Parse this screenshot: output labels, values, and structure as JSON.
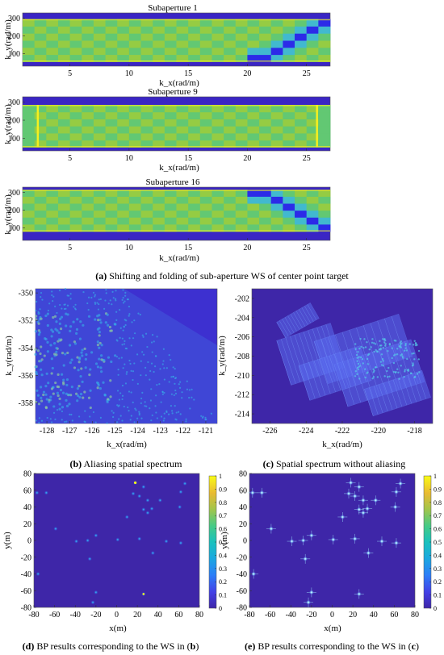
{
  "colors": {
    "dark": "#3a25c4",
    "deep": "#2c2be8",
    "mid": "#41b9cf",
    "green": "#62c873",
    "lime": "#95cc43",
    "yellow": "#f4f020"
  },
  "chart_data": [
    {
      "id": "sub1",
      "type": "heatmap",
      "title": "Subaperture 1",
      "xlabel": "k_x(rad/m)",
      "ylabel": "k_y(rad/m)",
      "xlim": [
        1,
        27
      ],
      "ylim": [
        30,
        330
      ],
      "xticks": [
        5,
        10,
        15,
        20,
        25
      ],
      "yticks": [
        100,
        200,
        300
      ],
      "band": [
        55,
        295
      ],
      "colorbar": false
    },
    {
      "id": "sub9",
      "type": "heatmap",
      "title": "Subaperture 9",
      "xlabel": "k_x(rad/m)",
      "ylabel": "k_y(rad/m)",
      "xlim": [
        1,
        27
      ],
      "ylim": [
        30,
        330
      ],
      "xticks": [
        5,
        10,
        15,
        20,
        25
      ],
      "yticks": [
        100,
        200,
        300
      ],
      "band": [
        50,
        285
      ],
      "colorbar": false
    },
    {
      "id": "sub16",
      "type": "heatmap",
      "title": "Subaperture 16",
      "xlabel": "k_x(rad/m)",
      "ylabel": "k_y(rad/m)",
      "xlim": [
        1,
        27
      ],
      "ylim": [
        30,
        330
      ],
      "xticks": [
        5,
        10,
        15,
        20,
        25
      ],
      "yticks": [
        100,
        200,
        300
      ],
      "band": [
        80,
        315
      ],
      "colorbar": false
    },
    {
      "id": "aliasing",
      "type": "heatmap",
      "title": "",
      "xlabel": "k_x(rad/m)",
      "ylabel": "k_y(rad/m)",
      "xlim": [
        -128.5,
        -120.5
      ],
      "ylim": [
        -359.5,
        -349.7
      ],
      "xticks": [
        -128,
        -127,
        -126,
        -125,
        -124,
        -123,
        -122,
        -121
      ],
      "yticks": [
        -350,
        -352,
        -354,
        -356,
        -358
      ],
      "colorbar": false
    },
    {
      "id": "no-aliasing",
      "type": "heatmap",
      "title": "",
      "xlabel": "k_x(rad/m)",
      "ylabel": "k_y(rad/m)",
      "xlim": [
        -227,
        -217
      ],
      "ylim": [
        -215,
        -201
      ],
      "xticks": [
        -226,
        -224,
        -222,
        -220,
        -218
      ],
      "yticks": [
        -202,
        -204,
        -206,
        -208,
        -210,
        -212,
        -214
      ],
      "colorbar": false
    },
    {
      "id": "bp-b",
      "type": "scatter",
      "title": "",
      "xlabel": "x(m)",
      "ylabel": "y(m)",
      "xlim": [
        -80,
        80
      ],
      "ylim": [
        -80,
        80
      ],
      "xticks": [
        -80,
        -60,
        -40,
        -20,
        0,
        20,
        40,
        60,
        80
      ],
      "yticks": [
        80,
        60,
        40,
        20,
        0,
        -20,
        -40,
        -60,
        -80
      ],
      "colorbar": true,
      "cticks": [
        "0",
        "0.1",
        "0.2",
        "0.3",
        "0.4",
        "0.5",
        "0.6",
        "0.7",
        "0.8",
        "0.9",
        "1"
      ],
      "points": [
        [
          -77,
          57
        ],
        [
          -68,
          57
        ],
        [
          -59,
          14
        ],
        [
          -39,
          -1
        ],
        [
          -28,
          0
        ],
        [
          -20,
          6
        ],
        [
          -26,
          -22
        ],
        [
          -20,
          -62
        ],
        [
          -23,
          -74
        ],
        [
          -76,
          -40
        ],
        [
          1,
          1
        ],
        [
          10,
          28
        ],
        [
          16,
          56
        ],
        [
          18,
          69
        ],
        [
          22,
          53
        ],
        [
          26,
          37
        ],
        [
          30,
          33
        ],
        [
          34,
          38
        ],
        [
          26,
          64
        ],
        [
          30,
          48
        ],
        [
          42,
          48
        ],
        [
          61,
          40
        ],
        [
          66,
          68
        ],
        [
          62,
          58
        ],
        [
          22,
          2
        ],
        [
          35,
          -15
        ],
        [
          48,
          -1
        ],
        [
          62,
          -3
        ],
        [
          26,
          -64
        ]
      ]
    },
    {
      "id": "bp-c",
      "type": "scatter",
      "title": "",
      "xlabel": "x(m)",
      "ylabel": "y(m)",
      "xlim": [
        -80,
        80
      ],
      "ylim": [
        -80,
        80
      ],
      "xticks": [
        -80,
        -60,
        -40,
        -20,
        0,
        20,
        40,
        60,
        80
      ],
      "yticks": [
        80,
        60,
        40,
        20,
        0,
        -20,
        -40,
        -60,
        -80
      ],
      "colorbar": true,
      "cticks": [
        "0",
        "0.1",
        "0.2",
        "0.3",
        "0.4",
        "0.5",
        "0.6",
        "0.7",
        "0.8",
        "0.9",
        "1"
      ],
      "points": [
        [
          -77,
          57
        ],
        [
          -68,
          57
        ],
        [
          -59,
          14
        ],
        [
          -39,
          -1
        ],
        [
          -28,
          0
        ],
        [
          -20,
          6
        ],
        [
          -26,
          -22
        ],
        [
          -20,
          -62
        ],
        [
          -23,
          -74
        ],
        [
          -76,
          -40
        ],
        [
          1,
          1
        ],
        [
          10,
          28
        ],
        [
          16,
          56
        ],
        [
          18,
          69
        ],
        [
          22,
          53
        ],
        [
          26,
          37
        ],
        [
          30,
          33
        ],
        [
          34,
          38
        ],
        [
          26,
          64
        ],
        [
          30,
          48
        ],
        [
          42,
          48
        ],
        [
          61,
          40
        ],
        [
          66,
          68
        ],
        [
          62,
          58
        ],
        [
          22,
          2
        ],
        [
          35,
          -15
        ],
        [
          48,
          -1
        ],
        [
          62,
          -3
        ],
        [
          26,
          -64
        ]
      ]
    }
  ],
  "captions": {
    "a_tag": "(a)",
    "a_text": "Shifting and folding of sub-aperture WS of center point target",
    "b_tag": "(b)",
    "b_text": "Aliasing spatial spectrum",
    "c_tag": "(c)",
    "c_text": "Spatial spectrum without aliasing",
    "d_tag": "(d)",
    "d_text": "BP results corresponding to the WS in (",
    "d_ref": "b",
    "d_end": ")",
    "e_tag": "(e)",
    "e_text": "BP results corresponding to the WS in (",
    "e_ref": "c",
    "e_end": ")"
  }
}
